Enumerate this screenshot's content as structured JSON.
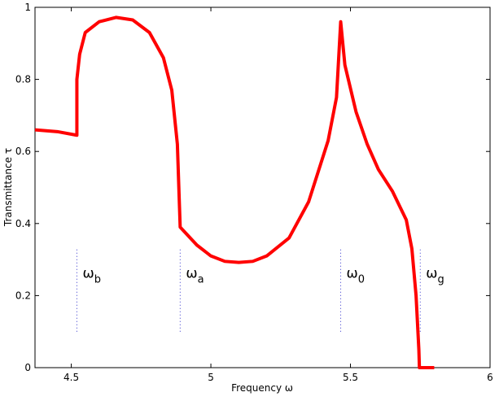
{
  "chart_data": {
    "type": "line",
    "xlabel": "Frequency  ω",
    "ylabel": "Transmittance τ",
    "xlim": [
      4.37,
      6
    ],
    "ylim": [
      0,
      1
    ],
    "xticks": [
      4.5,
      5,
      5.5,
      6
    ],
    "yticks": [
      0,
      0.2,
      0.4,
      0.6,
      0.8,
      1
    ],
    "series": [
      {
        "color": "#ff0000",
        "x": [
          4.37,
          4.45,
          4.52,
          4.52,
          4.53,
          4.55,
          4.6,
          4.66,
          4.72,
          4.78,
          4.83,
          4.86,
          4.88,
          4.89,
          4.95,
          5.0,
          5.05,
          5.1,
          5.15,
          5.2,
          5.28,
          5.35,
          5.42,
          5.45,
          5.465,
          5.48,
          5.52,
          5.56,
          5.6,
          5.65,
          5.7,
          5.72,
          5.735,
          5.745,
          5.747,
          5.8
        ],
        "values": [
          0.66,
          0.655,
          0.645,
          0.8,
          0.87,
          0.93,
          0.96,
          0.972,
          0.965,
          0.93,
          0.86,
          0.77,
          0.62,
          0.39,
          0.34,
          0.31,
          0.295,
          0.292,
          0.295,
          0.31,
          0.36,
          0.46,
          0.63,
          0.75,
          0.96,
          0.84,
          0.71,
          0.62,
          0.55,
          0.49,
          0.41,
          0.33,
          0.2,
          0.05,
          0,
          0
        ]
      }
    ],
    "annotations": [
      {
        "label": "ω",
        "subscript": "b",
        "x": 4.52,
        "y_range": [
          0.1,
          0.33
        ]
      },
      {
        "label": "ω",
        "subscript": "a",
        "x": 4.89,
        "y_range": [
          0.1,
          0.33
        ]
      },
      {
        "label": "ω",
        "subscript": "0",
        "x": 5.465,
        "y_range": [
          0.1,
          0.33
        ]
      },
      {
        "label": "ω",
        "subscript": "g",
        "x": 5.75,
        "y_range": [
          0.1,
          0.33
        ]
      }
    ]
  }
}
